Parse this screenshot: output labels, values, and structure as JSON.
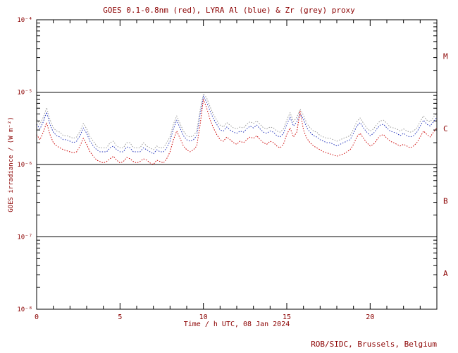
{
  "footer": "ROB/SIDC, Brussels, Belgium",
  "colors": {
    "axis_text": "#8b0000",
    "frame": "#000000",
    "background": "#ffffff",
    "series_red": "#cc0000",
    "series_blue": "#2233bb",
    "series_grey": "#999999"
  },
  "chart_data": {
    "type": "line",
    "title": "GOES 0.1-0.8nm (red), LYRA Al (blue) & Zr (grey) proxy",
    "xlabel": "Time / h UTC, 08 Jan 2024",
    "ylabel": "GOES irradiance / (W m⁻²)",
    "yscale": "log",
    "xlim": [
      0,
      24
    ],
    "ylim_log10": [
      -8,
      -4
    ],
    "xticks": [
      0,
      5,
      10,
      15,
      20
    ],
    "xtick_labels": [
      "0",
      "5",
      "10",
      "15",
      "20"
    ],
    "xminor_step": 1,
    "yticks_log10": [
      -4,
      -5,
      -6,
      -7,
      -8
    ],
    "ytick_labels": [
      "10⁻⁴",
      "10⁻⁵",
      "10⁻⁶",
      "10⁻⁷",
      "10⁻⁸"
    ],
    "hlines_log10": [
      -5,
      -6,
      -7
    ],
    "flare_classes": [
      {
        "label": "M",
        "log10_center": -4.5
      },
      {
        "label": "C",
        "log10_center": -5.5
      },
      {
        "label": "B",
        "log10_center": -6.5
      },
      {
        "label": "A",
        "log10_center": -7.5
      }
    ],
    "grid": false,
    "legend_position": "in-title",
    "values_unit": "1e-6 W m^-2",
    "x": [
      0,
      0.2,
      0.4,
      0.6,
      0.8,
      1,
      1.2,
      1.4,
      1.6,
      1.8,
      2,
      2.2,
      2.4,
      2.6,
      2.8,
      3,
      3.2,
      3.4,
      3.6,
      3.8,
      4,
      4.2,
      4.4,
      4.6,
      4.8,
      5,
      5.2,
      5.4,
      5.6,
      5.8,
      6,
      6.2,
      6.4,
      6.6,
      6.8,
      7,
      7.2,
      7.4,
      7.6,
      7.8,
      8,
      8.2,
      8.4,
      8.6,
      8.8,
      9,
      9.2,
      9.4,
      9.6,
      9.8,
      10,
      10.2,
      10.4,
      10.6,
      10.8,
      11,
      11.2,
      11.4,
      11.6,
      11.8,
      12,
      12.2,
      12.4,
      12.6,
      12.8,
      13,
      13.2,
      13.4,
      13.6,
      13.8,
      14,
      14.2,
      14.4,
      14.6,
      14.8,
      15,
      15.2,
      15.4,
      15.6,
      15.8,
      16,
      16.2,
      16.4,
      16.6,
      16.8,
      17,
      17.2,
      17.4,
      17.6,
      17.8,
      18,
      18.2,
      18.4,
      18.6,
      18.8,
      19,
      19.2,
      19.4,
      19.6,
      19.8,
      20,
      20.2,
      20.4,
      20.6,
      20.8,
      21,
      21.2,
      21.4,
      21.6,
      21.8,
      22,
      22.2,
      22.4,
      22.6,
      22.8,
      23,
      23.2,
      23.4,
      23.6,
      23.8,
      24
    ],
    "series": [
      {
        "name": "LYRA Zr proxy",
        "color_key": "series_grey",
        "values": [
          4.2,
          3.6,
          4.5,
          6.1,
          4.2,
          3.2,
          2.9,
          2.8,
          2.5,
          2.5,
          2.4,
          2.3,
          2.4,
          2.9,
          3.7,
          3.1,
          2.4,
          2.1,
          1.8,
          1.7,
          1.7,
          1.7,
          2.0,
          2.1,
          1.8,
          1.7,
          1.7,
          2.0,
          2.0,
          1.7,
          1.7,
          1.7,
          2.0,
          1.8,
          1.7,
          1.6,
          1.8,
          1.7,
          1.7,
          2.0,
          2.4,
          3.6,
          4.7,
          3.7,
          2.9,
          2.5,
          2.4,
          2.5,
          2.9,
          5.6,
          9.5,
          8.3,
          6.3,
          4.9,
          4.1,
          3.5,
          3.3,
          3.8,
          3.5,
          3.2,
          3.1,
          3.3,
          3.2,
          3.6,
          3.9,
          3.7,
          4.0,
          3.6,
          3.2,
          3.1,
          3.3,
          3.2,
          2.9,
          2.8,
          3.1,
          4.1,
          5.2,
          3.9,
          4.5,
          5.8,
          4.8,
          3.7,
          3.2,
          2.9,
          2.8,
          2.5,
          2.4,
          2.3,
          2.3,
          2.2,
          2.1,
          2.2,
          2.3,
          2.4,
          2.5,
          3.1,
          3.9,
          4.4,
          3.7,
          3.2,
          2.9,
          3.1,
          3.6,
          4.0,
          4.1,
          3.7,
          3.3,
          3.2,
          3.1,
          2.9,
          3.1,
          2.9,
          2.8,
          2.9,
          3.2,
          3.9,
          4.7,
          4.1,
          3.9,
          4.5,
          5.2
        ]
      },
      {
        "name": "LYRA Al",
        "color_key": "series_blue",
        "values": [
          3.6,
          3.1,
          3.9,
          5.3,
          3.6,
          2.8,
          2.5,
          2.4,
          2.2,
          2.2,
          2.1,
          2.0,
          2.1,
          2.5,
          3.2,
          2.7,
          2.1,
          1.8,
          1.6,
          1.5,
          1.5,
          1.5,
          1.7,
          1.8,
          1.6,
          1.5,
          1.5,
          1.75,
          1.7,
          1.5,
          1.5,
          1.5,
          1.7,
          1.6,
          1.5,
          1.4,
          1.6,
          1.5,
          1.5,
          1.7,
          2.1,
          3.1,
          4.1,
          3.2,
          2.5,
          2.2,
          2.1,
          2.2,
          2.5,
          4.9,
          8.8,
          7.2,
          5.5,
          4.3,
          3.6,
          3.0,
          2.9,
          3.3,
          3.0,
          2.8,
          2.7,
          2.9,
          2.8,
          3.1,
          3.4,
          3.2,
          3.5,
          3.1,
          2.8,
          2.7,
          2.9,
          2.8,
          2.5,
          2.4,
          2.7,
          3.6,
          4.5,
          3.4,
          3.9,
          5.0,
          4.2,
          3.2,
          2.8,
          2.5,
          2.4,
          2.2,
          2.1,
          2.0,
          2.0,
          1.9,
          1.8,
          1.9,
          2.0,
          2.1,
          2.2,
          2.7,
          3.4,
          3.8,
          3.2,
          2.8,
          2.5,
          2.7,
          3.1,
          3.5,
          3.6,
          3.2,
          2.9,
          2.8,
          2.7,
          2.5,
          2.7,
          2.5,
          2.4,
          2.5,
          2.8,
          3.4,
          4.1,
          3.6,
          3.4,
          3.9,
          4.5
        ]
      },
      {
        "name": "GOES 0.1-0.8nm",
        "color_key": "series_red",
        "values": [
          2.6,
          2.2,
          2.8,
          3.8,
          2.6,
          2.0,
          1.8,
          1.7,
          1.6,
          1.55,
          1.5,
          1.45,
          1.5,
          1.8,
          2.3,
          1.9,
          1.5,
          1.3,
          1.15,
          1.1,
          1.05,
          1.1,
          1.2,
          1.3,
          1.15,
          1.05,
          1.1,
          1.25,
          1.2,
          1.1,
          1.05,
          1.1,
          1.2,
          1.15,
          1.05,
          1.0,
          1.15,
          1.1,
          1.05,
          1.2,
          1.5,
          2.2,
          2.9,
          2.3,
          1.8,
          1.6,
          1.5,
          1.6,
          1.8,
          3.5,
          8.0,
          6.0,
          4.2,
          3.2,
          2.6,
          2.2,
          2.1,
          2.4,
          2.2,
          2.0,
          1.9,
          2.1,
          2.0,
          2.2,
          2.4,
          2.3,
          2.5,
          2.2,
          2.0,
          1.9,
          2.1,
          2.0,
          1.8,
          1.7,
          1.9,
          2.6,
          3.2,
          2.4,
          2.8,
          5.5,
          3.0,
          2.3,
          2.0,
          1.8,
          1.7,
          1.6,
          1.5,
          1.45,
          1.4,
          1.35,
          1.3,
          1.35,
          1.4,
          1.5,
          1.6,
          1.9,
          2.4,
          2.7,
          2.3,
          2.0,
          1.8,
          1.9,
          2.2,
          2.5,
          2.6,
          2.3,
          2.1,
          2.0,
          1.9,
          1.8,
          1.9,
          1.8,
          1.7,
          1.8,
          2.0,
          2.4,
          2.9,
          2.6,
          2.4,
          2.8,
          3.2
        ]
      }
    ]
  }
}
